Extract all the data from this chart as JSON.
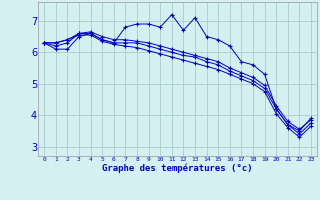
{
  "xlabel": "Graphe des températures (°c)",
  "background_color": "#d4f0f0",
  "grid_color": "#aacccc",
  "line_color": "#0000cc",
  "marker": "+",
  "x_ticks": [
    0,
    1,
    2,
    3,
    4,
    5,
    6,
    7,
    8,
    9,
    10,
    11,
    12,
    13,
    14,
    15,
    16,
    17,
    18,
    19,
    20,
    21,
    22,
    23
  ],
  "y_ticks": [
    3,
    4,
    5,
    6,
    7
  ],
  "xlim": [
    -0.5,
    23.5
  ],
  "ylim": [
    2.7,
    7.6
  ],
  "series": [
    [
      6.3,
      6.1,
      6.1,
      6.5,
      6.6,
      6.4,
      6.3,
      6.8,
      6.9,
      6.9,
      6.8,
      7.2,
      6.7,
      7.1,
      6.5,
      6.4,
      6.2,
      5.7,
      5.6,
      5.3,
      4.2,
      3.7,
      3.5,
      3.9
    ],
    [
      6.3,
      6.3,
      6.4,
      6.6,
      6.6,
      6.4,
      6.3,
      6.3,
      6.3,
      6.2,
      6.1,
      6.0,
      5.9,
      5.85,
      5.7,
      5.6,
      5.4,
      5.25,
      5.1,
      4.85,
      4.2,
      3.7,
      3.4,
      3.75
    ],
    [
      6.3,
      6.3,
      6.4,
      6.55,
      6.55,
      6.35,
      6.25,
      6.2,
      6.15,
      6.05,
      5.95,
      5.85,
      5.75,
      5.65,
      5.55,
      5.45,
      5.3,
      5.15,
      5.0,
      4.75,
      4.05,
      3.6,
      3.3,
      3.65
    ],
    [
      6.3,
      6.2,
      6.3,
      6.6,
      6.65,
      6.5,
      6.4,
      6.4,
      6.35,
      6.3,
      6.2,
      6.1,
      6.0,
      5.9,
      5.8,
      5.7,
      5.5,
      5.35,
      5.2,
      4.95,
      4.3,
      3.8,
      3.55,
      3.85
    ]
  ]
}
